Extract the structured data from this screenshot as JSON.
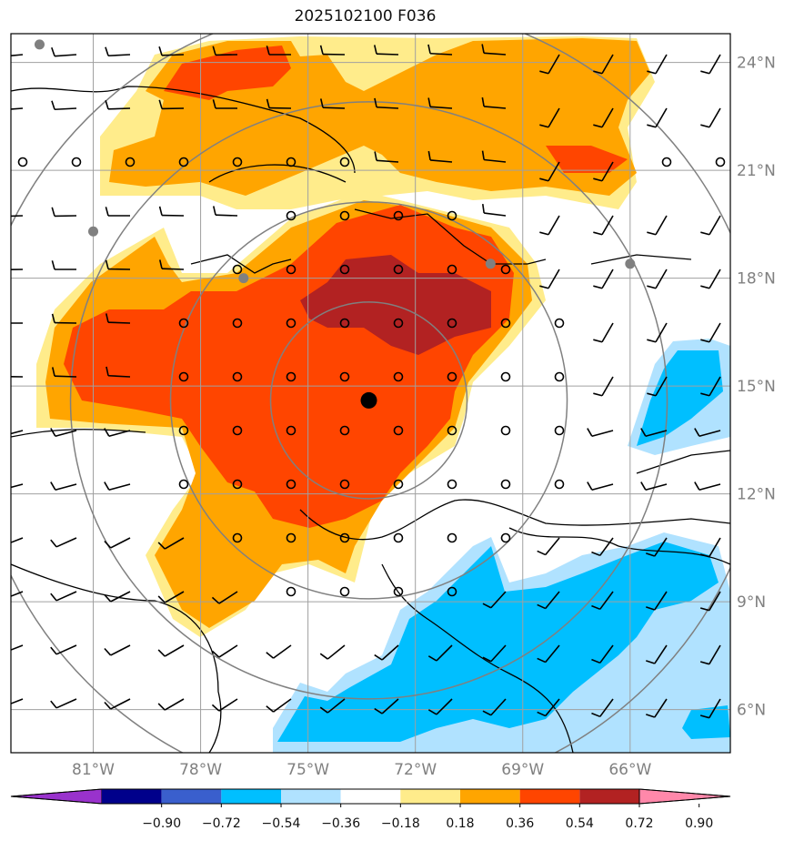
{
  "title": "2025102100 F036",
  "map": {
    "lon_range": [
      -83.3,
      -63.2
    ],
    "lat_range": [
      4.8,
      24.8
    ],
    "lat_ticks": [
      {
        "value": 24,
        "label": "24°N"
      },
      {
        "value": 21,
        "label": "21°N"
      },
      {
        "value": 18,
        "label": "18°N"
      },
      {
        "value": 15,
        "label": "15°N"
      },
      {
        "value": 12,
        "label": "12°N"
      },
      {
        "value": 9,
        "label": "9°N"
      },
      {
        "value": 6,
        "label": "6°N"
      }
    ],
    "lon_ticks": [
      {
        "value": -81,
        "label": "81°W"
      },
      {
        "value": -78,
        "label": "78°W"
      },
      {
        "value": -75,
        "label": "75°W"
      },
      {
        "value": -72,
        "label": "72°W"
      },
      {
        "value": -69,
        "label": "69°W"
      },
      {
        "value": -66,
        "label": "66°W"
      }
    ],
    "center": {
      "lon": -73.3,
      "lat": 14.6
    },
    "stations": [
      {
        "lon": -82.5,
        "lat": 24.5
      },
      {
        "lon": -81.0,
        "lat": 19.3
      },
      {
        "lon": -76.8,
        "lat": 18.0
      },
      {
        "lon": -69.9,
        "lat": 18.4
      },
      {
        "lon": -66.0,
        "lat": 18.4
      }
    ]
  },
  "colorbar": {
    "colors": [
      "#9932cc",
      "#00008b",
      "#3a5fcd",
      "#00bfff",
      "#b0e2ff",
      "#ffffff",
      "#ffec8b",
      "#ffa500",
      "#ff4500",
      "#b22222",
      "#ff88aa"
    ],
    "labels": [
      "−0.90",
      "−0.72",
      "−0.54",
      "−0.36",
      "−0.18",
      "0.18",
      "0.36",
      "0.54",
      "0.72",
      "0.90"
    ]
  },
  "colors": {
    "gridline": "#a0a0a0",
    "range_ring": "#808080",
    "coastline": "#000000"
  }
}
